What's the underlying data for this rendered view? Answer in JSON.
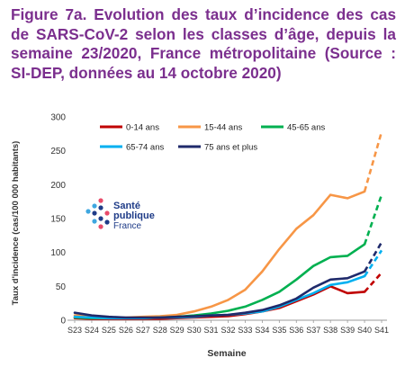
{
  "title": "Figure 7a. Evolution des taux d’incidence des cas de SARS-CoV-2 selon les classes d’âge, depuis la semaine 23/2020, France métropolitaine (Source : SI-DEP, données au 14 octobre 2020)",
  "logo": {
    "line1": "Santé",
    "line2": "publique",
    "line3": "France",
    "icon": "sante-publique-france-logo"
  },
  "chart_data": {
    "type": "line",
    "xlabel": "Semaine",
    "ylabel": "Taux d'incidence (cas/100 000 habitants)",
    "ylim": [
      0,
      300
    ],
    "yticks": [
      0,
      50,
      100,
      150,
      200,
      250,
      300
    ],
    "categories": [
      "S23",
      "S24",
      "S25",
      "S26",
      "S27",
      "S28",
      "S29",
      "S30",
      "S31",
      "S32",
      "S33",
      "S34",
      "S35",
      "S36",
      "S37",
      "S38",
      "S39",
      "S40",
      "S41"
    ],
    "dashed_from_index": 17,
    "grid": false,
    "legend_position": "top",
    "series": [
      {
        "name": "0-14 ans",
        "color": "#c00000",
        "values": [
          3,
          2,
          2,
          2,
          2,
          2,
          3,
          4,
          5,
          6,
          9,
          13,
          18,
          28,
          38,
          50,
          40,
          42,
          70
        ]
      },
      {
        "name": "15-44 ans",
        "color": "#f79646",
        "values": [
          7,
          5,
          4,
          4,
          5,
          6,
          8,
          13,
          20,
          30,
          45,
          72,
          105,
          135,
          155,
          185,
          180,
          190,
          278
        ]
      },
      {
        "name": "45-65 ans",
        "color": "#00b050",
        "values": [
          4,
          3,
          3,
          3,
          3,
          4,
          5,
          7,
          10,
          14,
          20,
          30,
          42,
          60,
          80,
          93,
          95,
          112,
          185
        ]
      },
      {
        "name": "65-74 ans",
        "color": "#00b0f0",
        "values": [
          5,
          4,
          3,
          3,
          3,
          4,
          4,
          5,
          7,
          8,
          10,
          13,
          20,
          30,
          40,
          52,
          56,
          65,
          103
        ]
      },
      {
        "name": "75 ans et plus",
        "color": "#1f2a6b",
        "values": [
          11,
          7,
          5,
          4,
          4,
          4,
          5,
          6,
          7,
          8,
          11,
          15,
          22,
          32,
          48,
          60,
          62,
          72,
          115
        ]
      }
    ]
  }
}
